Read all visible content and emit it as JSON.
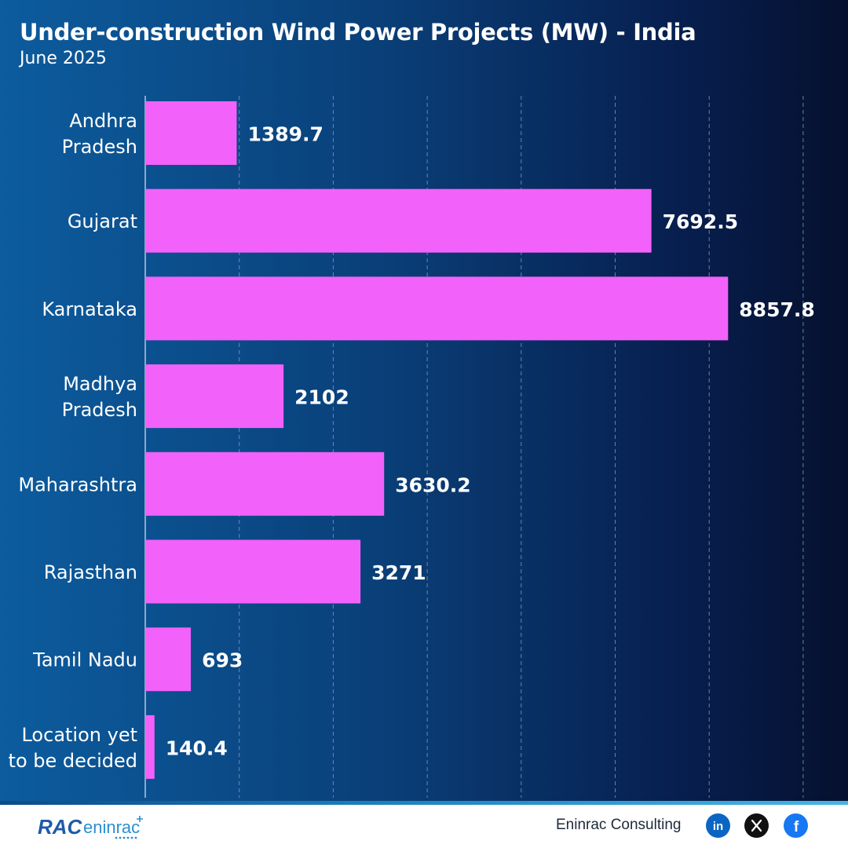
{
  "header": {
    "title": "Under-construction Wind Power Projects (MW) - India",
    "subtitle": "June 2025"
  },
  "chart_data": {
    "type": "bar",
    "orientation": "horizontal",
    "title": "Under-construction Wind Power Projects (MW) - India",
    "subtitle": "June 2025",
    "categories": [
      "Andhra Pradesh",
      "Gujarat",
      "Karnataka",
      "Madhya Pradesh",
      "Maharashtra",
      "Rajasthan",
      "Tamil Nadu",
      "Location yet to be decided"
    ],
    "category_lines": [
      [
        "Andhra",
        "Pradesh"
      ],
      [
        "Gujarat"
      ],
      [
        "Karnataka"
      ],
      [
        "Madhya",
        "Pradesh"
      ],
      [
        "Maharashtra"
      ],
      [
        "Rajasthan"
      ],
      [
        "Tamil Nadu"
      ],
      [
        "Location yet",
        "to be decided"
      ]
    ],
    "values": [
      1389.7,
      7692.5,
      8857.8,
      2102,
      3630.2,
      3271,
      693,
      140.4
    ],
    "value_labels": [
      "1389.7",
      "7692.5",
      "8857.8",
      "2102",
      "3630.2",
      "3271",
      "693",
      "140.4"
    ],
    "xlim": [
      0,
      10000
    ],
    "grid": "vertical dashed",
    "colors": {
      "bar": "#f261fa",
      "label": "#ffffff",
      "grid": "#8aa0c4",
      "axis": "#d0d8e8"
    }
  },
  "footer": {
    "brand": "Eninrac Consulting",
    "logo_text": "eninrac",
    "logo_mark": "RAC",
    "social_icons": [
      {
        "name": "linkedin-icon",
        "glyph": "in",
        "color": "#0a66c2"
      },
      {
        "name": "x-icon",
        "glyph": "X",
        "color": "#111111"
      },
      {
        "name": "facebook-icon",
        "glyph": "f",
        "color": "#1877f2"
      }
    ]
  }
}
